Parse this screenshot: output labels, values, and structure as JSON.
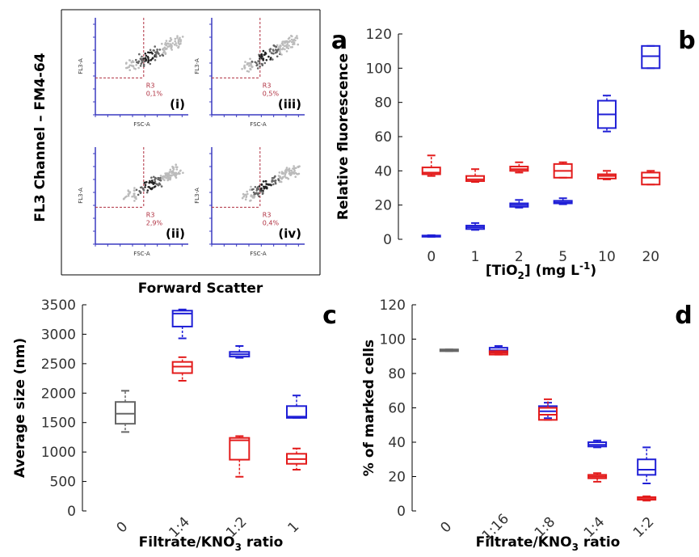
{
  "colors": {
    "blue": "#1f1fd6",
    "red": "#e31b1b",
    "gray": "#666666",
    "scatter_axis": "#3a3ac0",
    "gate": "#b03040"
  },
  "panel_a": {
    "letter": "a",
    "ylabel": "FL3 Channel – FM4-64",
    "xlabel": "Forward Scatter",
    "sub_xlabel": "FSC-A",
    "sub_ylabel": "FL3-A",
    "gate_name": "R3",
    "subplots": [
      {
        "tag": "(i)",
        "percent": "0,1%"
      },
      {
        "tag": "(iii)",
        "percent": "0,5%"
      },
      {
        "tag": "(ii)",
        "percent": "2,9%"
      },
      {
        "tag": "(iv)",
        "percent": "0,4%"
      }
    ]
  },
  "chart_data": [
    {
      "panel": "b",
      "type": "box",
      "ylabel": "Relative fluorescence",
      "xlabel_main": "[TiO",
      "xlabel_sub": "2",
      "xlabel_unit": "] (mg L",
      "xlabel_sup": "-1",
      "xlabel_end": ")",
      "categories": [
        "0",
        "1",
        "2",
        "5",
        "10",
        "20"
      ],
      "ylim": [
        0,
        120
      ],
      "yticks": [
        "0",
        "20",
        "40",
        "60",
        "80",
        "100",
        "120"
      ],
      "series": [
        {
          "color": "blue",
          "boxes": [
            {
              "cat": 0,
              "q1": 1.5,
              "med": 1.8,
              "q3": 2.2,
              "lo": 1.4,
              "hi": 2.4
            },
            {
              "cat": 1,
              "q1": 6,
              "med": 7,
              "q3": 8,
              "lo": 5.5,
              "hi": 9.5
            },
            {
              "cat": 2,
              "q1": 19,
              "med": 20,
              "q3": 21,
              "lo": 18.5,
              "hi": 23
            },
            {
              "cat": 3,
              "q1": 21,
              "med": 21.5,
              "q3": 22.5,
              "lo": 20.5,
              "hi": 24
            },
            {
              "cat": 4,
              "q1": 65,
              "med": 73,
              "q3": 81,
              "lo": 63,
              "hi": 84
            },
            {
              "cat": 5,
              "q1": 100,
              "med": 107,
              "q3": 113,
              "lo": 100,
              "hi": 113
            }
          ]
        },
        {
          "color": "red",
          "boxes": [
            {
              "cat": 0,
              "q1": 38,
              "med": 39,
              "q3": 42,
              "lo": 37,
              "hi": 49
            },
            {
              "cat": 1,
              "q1": 34,
              "med": 35,
              "q3": 37,
              "lo": 33.5,
              "hi": 41
            },
            {
              "cat": 2,
              "q1": 40,
              "med": 41,
              "q3": 42.5,
              "lo": 39,
              "hi": 45
            },
            {
              "cat": 3,
              "q1": 36,
              "med": 40,
              "q3": 44,
              "lo": 36,
              "hi": 45
            },
            {
              "cat": 4,
              "q1": 35.5,
              "med": 37,
              "q3": 38,
              "lo": 35,
              "hi": 40
            },
            {
              "cat": 5,
              "q1": 32,
              "med": 36,
              "q3": 39,
              "lo": 32,
              "hi": 40
            }
          ]
        }
      ]
    },
    {
      "panel": "c",
      "type": "box",
      "ylabel": "Average size (nm)",
      "xlabel_main": "Filtrate/KNO",
      "xlabel_sub": "3",
      "xlabel_end": " ratio",
      "categories": [
        "0",
        "1:4",
        "1:2",
        "1"
      ],
      "ylim": [
        0,
        3500
      ],
      "yticks": [
        "0",
        "500",
        "1000",
        "1500",
        "2000",
        "2500",
        "3000",
        "3500"
      ],
      "series": [
        {
          "color": "gray",
          "boxes": [
            {
              "cat": 0,
              "q1": 1480,
              "med": 1650,
              "q3": 1850,
              "lo": 1340,
              "hi": 2040
            }
          ]
        },
        {
          "color": "blue",
          "boxes": [
            {
              "cat": 1,
              "q1": 3130,
              "med": 3350,
              "q3": 3400,
              "lo": 2930,
              "hi": 3420
            },
            {
              "cat": 2,
              "q1": 2620,
              "med": 2660,
              "q3": 2700,
              "lo": 2600,
              "hi": 2800
            },
            {
              "cat": 3,
              "q1": 1580,
              "med": 1600,
              "q3": 1780,
              "lo": 1580,
              "hi": 1960
            }
          ]
        },
        {
          "color": "red",
          "boxes": [
            {
              "cat": 1,
              "q1": 2340,
              "med": 2450,
              "q3": 2530,
              "lo": 2210,
              "hi": 2610
            },
            {
              "cat": 2,
              "q1": 870,
              "med": 1200,
              "q3": 1240,
              "lo": 580,
              "hi": 1270
            },
            {
              "cat": 3,
              "q1": 800,
              "med": 880,
              "q3": 970,
              "lo": 700,
              "hi": 1060
            }
          ]
        }
      ]
    },
    {
      "panel": "d",
      "type": "box",
      "ylabel": "% of marked cells",
      "xlabel_main": "Filtrate/KNO",
      "xlabel_sub": "3",
      "xlabel_end": " ratio",
      "categories": [
        "0",
        "1:16",
        "1:8",
        "1:4",
        "1:2"
      ],
      "ylim": [
        0,
        120
      ],
      "yticks": [
        "0",
        "20",
        "40",
        "60",
        "80",
        "100",
        "120"
      ],
      "series": [
        {
          "color": "gray",
          "boxes": [
            {
              "cat": 0,
              "q1": 93,
              "med": 93.5,
              "q3": 94,
              "lo": 93,
              "hi": 94
            }
          ]
        },
        {
          "color": "blue",
          "boxes": [
            {
              "cat": 1,
              "q1": 92.5,
              "med": 93.5,
              "q3": 95,
              "lo": 92,
              "hi": 96
            },
            {
              "cat": 2,
              "q1": 56,
              "med": 58,
              "q3": 61,
              "lo": 54,
              "hi": 63
            },
            {
              "cat": 3,
              "q1": 37.5,
              "med": 38.5,
              "q3": 40,
              "lo": 37,
              "hi": 41
            },
            {
              "cat": 4,
              "q1": 21,
              "med": 24,
              "q3": 30,
              "lo": 16,
              "hi": 37
            }
          ]
        },
        {
          "color": "red",
          "boxes": [
            {
              "cat": 1,
              "q1": 91,
              "med": 92,
              "q3": 93,
              "lo": 91,
              "hi": 93
            },
            {
              "cat": 2,
              "q1": 53,
              "med": 56,
              "q3": 60,
              "lo": 53,
              "hi": 65
            },
            {
              "cat": 3,
              "q1": 19,
              "med": 20,
              "q3": 21,
              "lo": 17,
              "hi": 22
            },
            {
              "cat": 4,
              "q1": 6.5,
              "med": 7,
              "q3": 8,
              "lo": 6,
              "hi": 8.5
            }
          ]
        }
      ]
    }
  ]
}
